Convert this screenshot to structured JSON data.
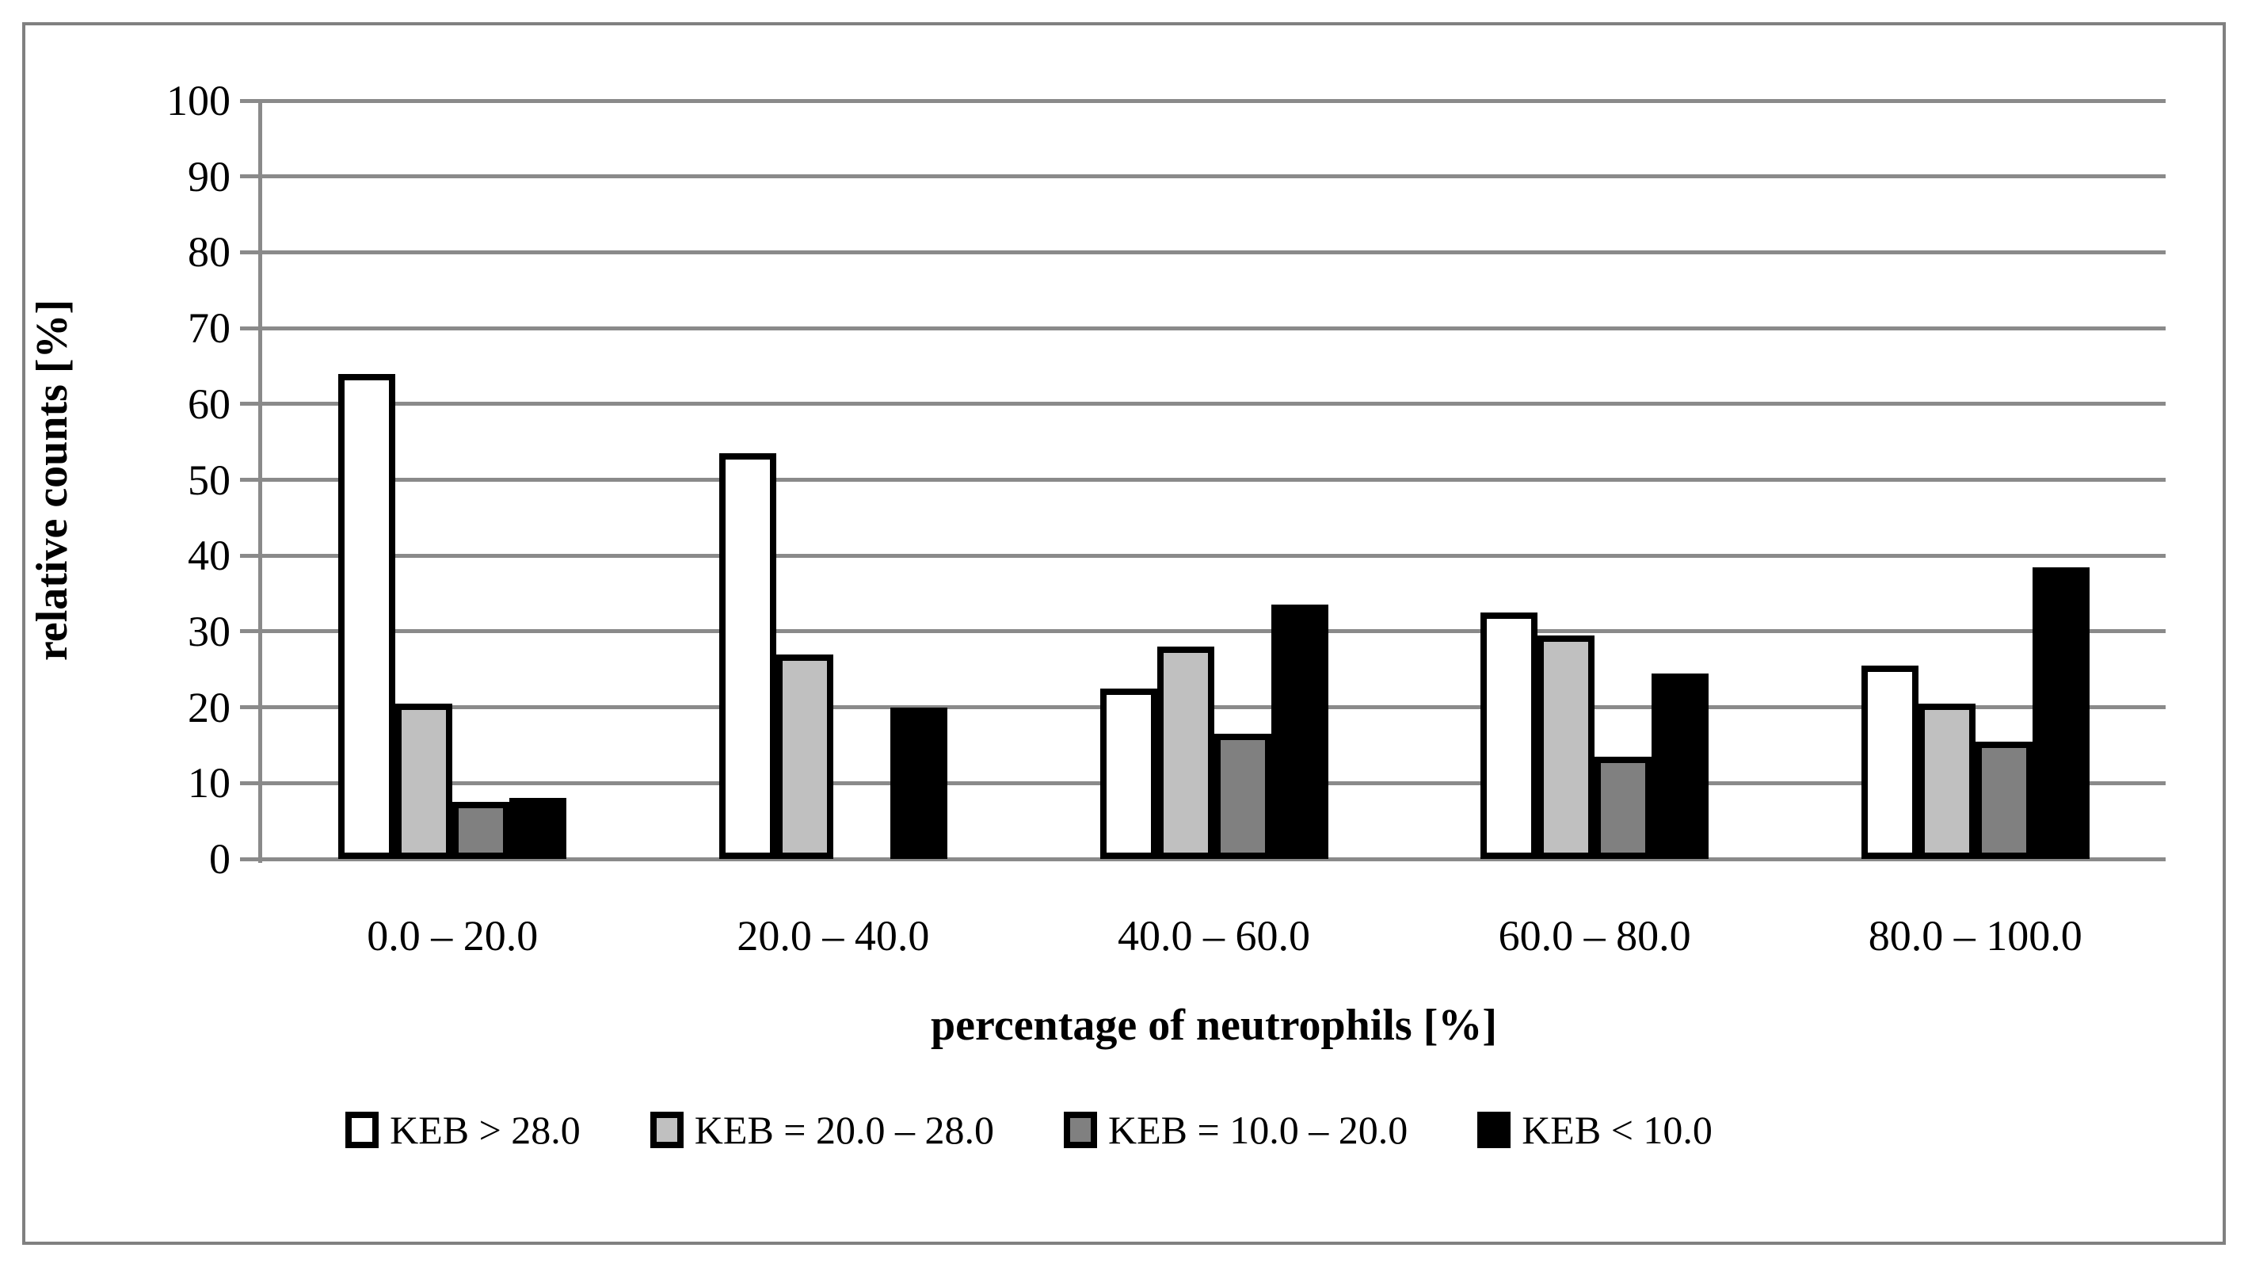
{
  "figure": {
    "background": "#ffffff",
    "frame_border_color": "#808080"
  },
  "chart_data": {
    "type": "bar",
    "title": "",
    "xlabel": "percentage of neutrophils [%]",
    "ylabel": "relative counts [%]",
    "ylim": [
      0,
      100
    ],
    "y_ticks": [
      0,
      10,
      20,
      30,
      40,
      50,
      60,
      70,
      80,
      90,
      100
    ],
    "grid": true,
    "grid_color": "#8a8a8a",
    "axis_color": "#8a8a8a",
    "bar_outline_color": "#000000",
    "legend_position": "bottom",
    "categories": [
      "0.0 – 20.0",
      "20.0 – 40.0",
      "40.0 – 60.0",
      "60.0 – 80.0",
      "80.0 – 100.0"
    ],
    "series": [
      {
        "name": "KEB > 28.0",
        "color": "#ffffff",
        "values": [
          64,
          53.5,
          22.5,
          32.5,
          25.5
        ]
      },
      {
        "name": "KEB = 20.0 – 28.0",
        "color": "#c0c0c0",
        "values": [
          20.5,
          27,
          28,
          29.5,
          20.5
        ]
      },
      {
        "name": "KEB = 10.0 – 20.0",
        "color": "#808080",
        "values": [
          7.5,
          0,
          16.5,
          13.5,
          15.5
        ]
      },
      {
        "name": "KEB < 10.0",
        "color": "#000000",
        "values": [
          8,
          20,
          33.5,
          24.5,
          38.5
        ]
      }
    ]
  }
}
